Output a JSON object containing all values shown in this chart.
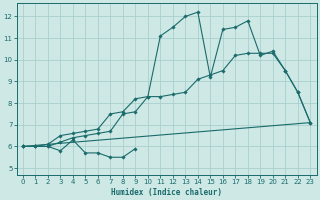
{
  "xlabel": "Humidex (Indice chaleur)",
  "xlim": [
    -0.5,
    23.5
  ],
  "ylim": [
    4.7,
    12.6
  ],
  "xticks": [
    0,
    1,
    2,
    3,
    4,
    5,
    6,
    7,
    8,
    9,
    10,
    11,
    12,
    13,
    14,
    15,
    16,
    17,
    18,
    19,
    20,
    21,
    22,
    23
  ],
  "yticks": [
    5,
    6,
    7,
    8,
    9,
    10,
    11,
    12
  ],
  "bg_color": "#cde8e5",
  "line_color": "#1a6b6b",
  "grid_color": "#a8d0cc",
  "line_jagged_x": [
    0,
    1,
    2,
    3,
    4,
    5,
    6,
    7,
    8,
    9,
    10,
    11,
    12,
    13,
    14,
    15,
    16,
    17,
    18,
    19,
    20,
    21,
    22,
    23
  ],
  "line_jagged_y": [
    6.0,
    6.0,
    6.1,
    6.5,
    6.6,
    6.7,
    6.8,
    7.5,
    7.6,
    8.2,
    8.3,
    11.1,
    11.5,
    12.0,
    12.2,
    9.2,
    11.4,
    11.5,
    11.8,
    10.2,
    10.4,
    9.5,
    8.5,
    7.1
  ],
  "line_upper_x": [
    0,
    1,
    2,
    3,
    4,
    5,
    6,
    7,
    8,
    9,
    10,
    11,
    12,
    13,
    14,
    15,
    16,
    17,
    18,
    19,
    20,
    21,
    22,
    23
  ],
  "line_upper_y": [
    6.0,
    6.0,
    6.0,
    6.2,
    6.4,
    6.5,
    6.6,
    6.7,
    7.5,
    7.6,
    8.3,
    8.3,
    8.4,
    8.5,
    9.1,
    9.3,
    9.5,
    10.2,
    10.3,
    10.3,
    10.3,
    9.5,
    8.5,
    7.1
  ],
  "line_squig_x": [
    0,
    1,
    2,
    3,
    4,
    5,
    6,
    7,
    8,
    9
  ],
  "line_squig_y": [
    6.0,
    6.0,
    6.0,
    5.8,
    6.3,
    5.7,
    5.7,
    5.5,
    5.5,
    5.9
  ],
  "line_trend_x": [
    0,
    23
  ],
  "line_trend_y": [
    6.0,
    7.1
  ]
}
